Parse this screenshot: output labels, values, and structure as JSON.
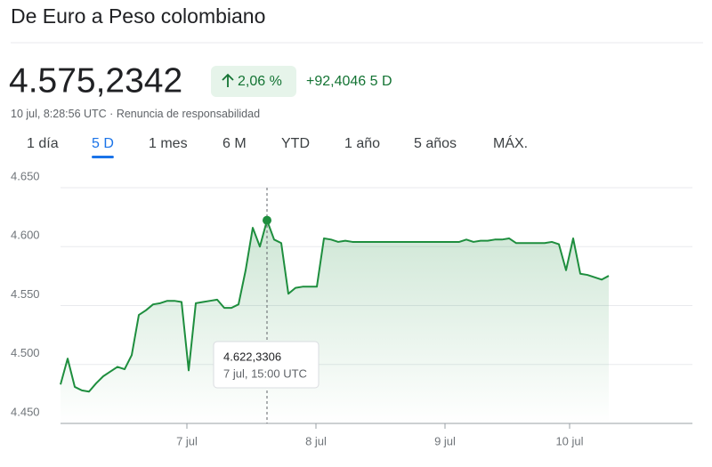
{
  "header": {
    "title": "De Euro a Peso colombiano",
    "price": "4.575,2342",
    "change_percent": "2,06 %",
    "change_absolute": "+92,4046 5 D",
    "timestamp": "10 jul, 8:28:56 UTC",
    "disclaimer": "Renuncia de responsabilidad"
  },
  "tabs": [
    "1 día",
    "5 D",
    "1 mes",
    "6 M",
    "YTD",
    "1 año",
    "5 años",
    "MÁX."
  ],
  "selected_tab_index": 1,
  "chart_data": {
    "type": "line",
    "color": "#1e8e3e",
    "grid": true,
    "ylim": [
      4450,
      4650
    ],
    "yticks": [
      {
        "value": 4450,
        "label": "4.450"
      },
      {
        "value": 4500,
        "label": "4.500"
      },
      {
        "value": 4550,
        "label": "4.550"
      },
      {
        "value": 4600,
        "label": "4.600"
      },
      {
        "value": 4650,
        "label": "4.650"
      }
    ],
    "xtick_labels": [
      "7 jul",
      "8 jul",
      "9 jul",
      "10 jul"
    ],
    "values": [
      4483,
      4505,
      4481,
      4478,
      4477,
      4484,
      4490,
      4494,
      4498,
      4496,
      4508,
      4542,
      4546,
      4551,
      4552,
      4554,
      4554,
      4553,
      4495,
      4552,
      4553,
      4554,
      4555,
      4548,
      4548,
      4551,
      4580,
      4616,
      4600,
      4622.3306,
      4606,
      4603,
      4560,
      4565,
      4566,
      4566,
      4566,
      4607,
      4606,
      4604,
      4605,
      4604,
      4604,
      4604,
      4604,
      4604,
      4604,
      4604,
      4604,
      4604,
      4604,
      4604,
      4604,
      4604,
      4604,
      4604,
      4604,
      4606,
      4604,
      4605,
      4605,
      4606,
      4606,
      4607,
      4603,
      4603,
      4603,
      4603,
      4603,
      4604,
      4602,
      4580,
      4607,
      4577,
      4576,
      4574,
      4572,
      4575.2342
    ],
    "tooltip": {
      "index": 29,
      "value": "4.622,3306",
      "time": "7 jul, 15:00 UTC"
    }
  }
}
